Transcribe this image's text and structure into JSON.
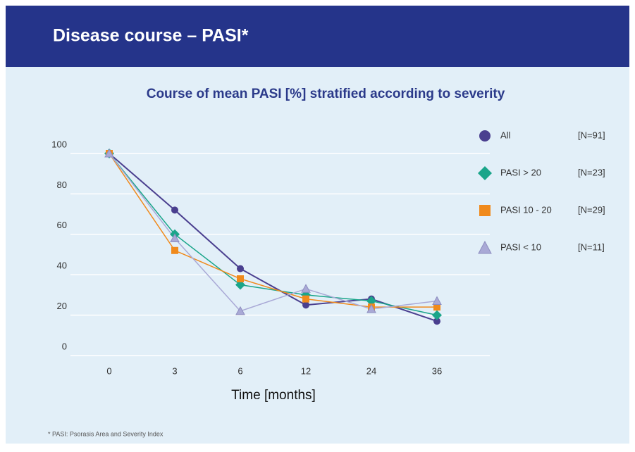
{
  "header": {
    "title": "Disease course – PASI*"
  },
  "chart_data": {
    "type": "line",
    "title": "Course of mean PASI [%] stratified according to severity",
    "xlabel": "Time [months]",
    "categories": [
      "0",
      "3",
      "6",
      "12",
      "24",
      "36"
    ],
    "ylim": [
      0,
      100
    ],
    "yticks": [
      0,
      20,
      40,
      60,
      80,
      100
    ],
    "grid": true,
    "series": [
      {
        "name": "All",
        "legend_note": "[N=91]",
        "color": "#4a3f8f",
        "marker": "circle",
        "values": [
          100,
          72,
          43,
          25,
          28,
          17
        ]
      },
      {
        "name": "PASI > 20",
        "legend_note": "[N=23]",
        "color": "#1aa58a",
        "marker": "diamond",
        "values": [
          100,
          60,
          35,
          30,
          27,
          20
        ]
      },
      {
        "name": "PASI 10 - 20",
        "legend_note": "[N=29]",
        "color": "#f08a1c",
        "marker": "square",
        "values": [
          100,
          52,
          38,
          28,
          24,
          24
        ]
      },
      {
        "name": "PASI < 10",
        "legend_note": "[N=11]",
        "color": "#a9a9d6",
        "marker": "triangle",
        "values": [
          100,
          58,
          22,
          33,
          23,
          27
        ]
      }
    ]
  },
  "footnote": "* PASI: Psorasis Area and Severity Index"
}
